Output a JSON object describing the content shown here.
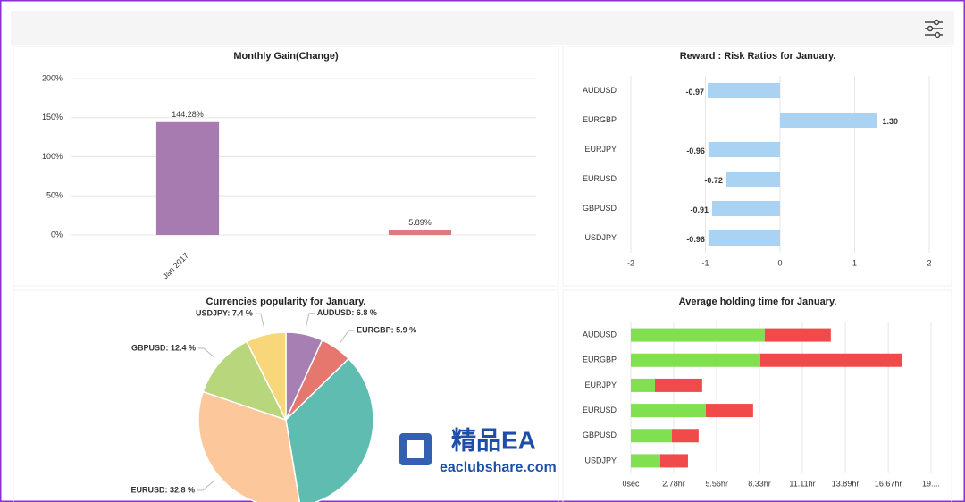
{
  "chart_data": [
    {
      "type": "bar",
      "title": "Monthly Gain(Change)",
      "categories": [
        "Jan 2017",
        null
      ],
      "values": [
        144.28,
        5.89
      ],
      "value_labels": [
        "144.28%",
        "5.89%"
      ],
      "colors": [
        "#a87bb0",
        "#e07b7b"
      ],
      "ylim": [
        0,
        200
      ],
      "yticks": [
        {
          "value": 0,
          "label": "0%"
        },
        {
          "value": 50,
          "label": "50%"
        },
        {
          "value": 100,
          "label": "100%"
        },
        {
          "value": 150,
          "label": "150%"
        },
        {
          "value": 200,
          "label": "200%"
        }
      ],
      "grid": true
    },
    {
      "type": "barh",
      "title": "Reward : Risk Ratios for January.",
      "categories": [
        "AUDUSD",
        "EURGBP",
        "EURJPY",
        "EURUSD",
        "GBPUSD",
        "USDJPY"
      ],
      "values": [
        -0.97,
        1.3,
        -0.96,
        -0.72,
        -0.91,
        -0.96
      ],
      "value_labels": [
        "-0.97",
        "1.30",
        "-0.96",
        "-0.72",
        "-0.91",
        "-0.96"
      ],
      "color": "#a9d2f3",
      "xlim": [
        -2,
        2
      ],
      "xticks": [
        -2,
        -1,
        0,
        1,
        2
      ],
      "grid": true
    },
    {
      "type": "pie",
      "title": "Currencies popularity for January.",
      "labels": [
        "AUDUSD: 6.8 %",
        "EURGBP: 5.9 %",
        null,
        "EURUSD: 32.8 %",
        "GBPUSD: 12.4 %",
        "USDJPY: 7.4 %"
      ],
      "values": [
        6.8,
        5.9,
        34.7,
        32.8,
        12.4,
        7.4
      ],
      "colors": [
        "#a77fb3",
        "#e5776f",
        "#5fbcb1",
        "#fbc79b",
        "#b8d77d",
        "#f8d77a"
      ]
    },
    {
      "type": "barh",
      "stacked": true,
      "title": "Average holding time for January.",
      "categories": [
        "AUDUSD",
        "EURGBP",
        "EURJPY",
        "EURUSD",
        "GBPUSD",
        "USDJPY"
      ],
      "series": [
        {
          "color": "#80e050",
          "values": [
            8.67,
            8.38,
            1.56,
            4.86,
            2.66,
            1.91
          ]
        },
        {
          "color": "#f04a4a",
          "values": [
            4.28,
            9.19,
            3.06,
            3.06,
            1.73,
            1.79
          ]
        }
      ],
      "xlim": [
        0,
        19.44
      ],
      "xticks": [
        {
          "value": 0,
          "label": "0sec"
        },
        {
          "value": 2.78,
          "label": "2.78hr"
        },
        {
          "value": 5.56,
          "label": "5.56hr"
        },
        {
          "value": 8.33,
          "label": "8.33hr"
        },
        {
          "value": 11.11,
          "label": "11.11hr"
        },
        {
          "value": 13.89,
          "label": "13.89hr"
        },
        {
          "value": 16.67,
          "label": "16.67hr"
        },
        {
          "value": 19.44,
          "label": "19...."
        }
      ],
      "grid": true
    }
  ],
  "watermark": {
    "title": "精品EA",
    "url": "eaclubshare.com"
  }
}
